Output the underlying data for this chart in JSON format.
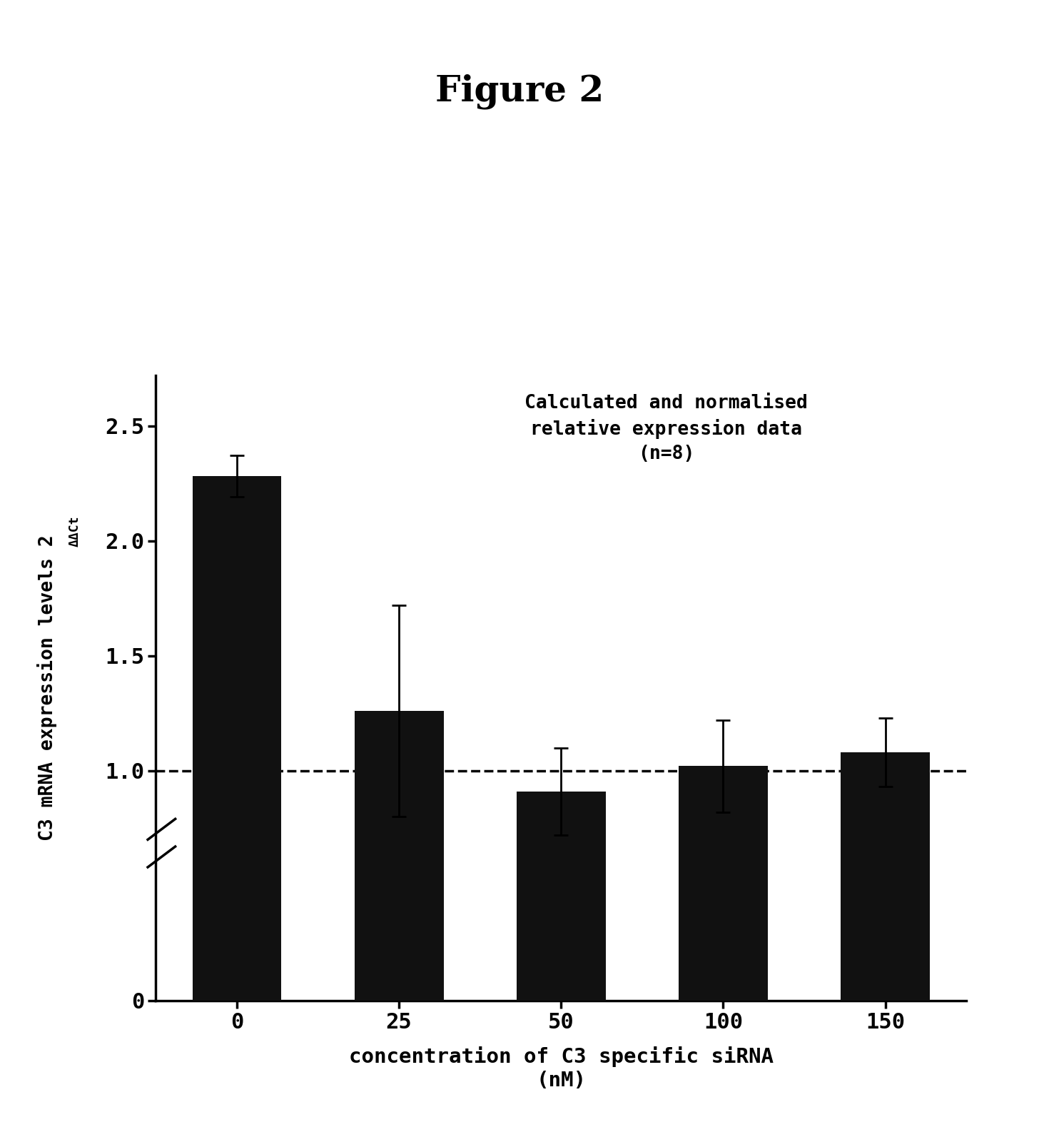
{
  "title": "Figure 2",
  "title_fontsize": 36,
  "title_fontweight": "bold",
  "title_fontfamily": "serif",
  "annotation_line1": "Calculated and normalised",
  "annotation_line2": "relative expression data",
  "annotation_line3": "(n=8)",
  "annotation_fontsize": 19,
  "annotation_fontweight": "bold",
  "annotation_fontfamily": "monospace",
  "categories": [
    "0",
    "25",
    "50",
    "100",
    "150"
  ],
  "values": [
    2.28,
    1.26,
    0.91,
    1.02,
    1.08
  ],
  "errors": [
    0.09,
    0.46,
    0.19,
    0.2,
    0.15
  ],
  "bar_color": "#111111",
  "bar_width": 0.55,
  "xlabel_line1": "concentration of C3 specific siRNA",
  "xlabel_line2": "(nM)",
  "xlabel_fontsize": 21,
  "xlabel_fontfamily": "monospace",
  "ylabel_main": "C3 mRNA expression levels 2",
  "ylabel_super": "ΔΔCt",
  "ylabel_fontsize": 19,
  "ylabel_fontfamily": "monospace",
  "ylim": [
    0,
    2.72
  ],
  "yticks": [
    0,
    1.0,
    1.5,
    2.0,
    2.5
  ],
  "ytick_labels": [
    "0",
    "1.0",
    "1.5",
    "2.0",
    "2.5"
  ],
  "dashed_line_y": 1.0,
  "background_color": "#ffffff",
  "tick_fontsize": 22,
  "tick_fontfamily": "monospace",
  "tick_fontweight": "bold"
}
